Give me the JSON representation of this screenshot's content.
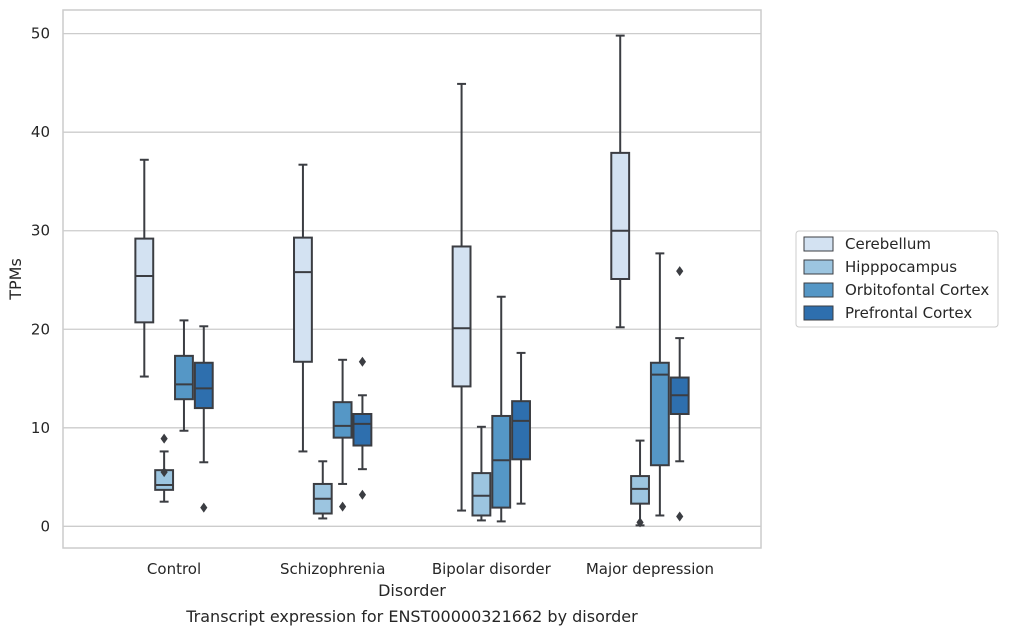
{
  "chart_data": {
    "type": "box",
    "xlabel": "Disorder",
    "ylabel": "TPMs",
    "caption": "Transcript expression for ENST00000321662 by disorder",
    "ylim": [
      -2.2,
      52.4
    ],
    "yticks": [
      0,
      10,
      20,
      30,
      40,
      50
    ],
    "grid": "horizontal",
    "legend_position": "right",
    "categories": [
      "Control",
      "Schizophrenia",
      "Bipolar disorder",
      "Major depression"
    ],
    "series": [
      {
        "name": "Cerebellum",
        "color": "#d3e2f2",
        "boxes": [
          {
            "whisker_low": 15.2,
            "q1": 20.7,
            "median": 25.4,
            "q3": 29.2,
            "whisker_high": 37.2,
            "outliers": []
          },
          {
            "whisker_low": 7.6,
            "q1": 16.7,
            "median": 25.8,
            "q3": 29.3,
            "whisker_high": 36.7,
            "outliers": []
          },
          {
            "whisker_low": 1.6,
            "q1": 14.2,
            "median": 20.1,
            "q3": 28.4,
            "whisker_high": 44.9,
            "outliers": []
          },
          {
            "whisker_low": 20.2,
            "q1": 25.1,
            "median": 30.0,
            "q3": 37.9,
            "whisker_high": 49.8,
            "outliers": []
          }
        ]
      },
      {
        "name": "Hipppocampus",
        "color": "#9cc5e0",
        "boxes": [
          {
            "whisker_low": 2.5,
            "q1": 3.7,
            "median": 4.2,
            "q3": 5.7,
            "whisker_high": 7.6,
            "outliers": [
              8.9,
              5.5
            ]
          },
          {
            "whisker_low": 0.8,
            "q1": 1.3,
            "median": 2.8,
            "q3": 4.3,
            "whisker_high": 6.6,
            "outliers": []
          },
          {
            "whisker_low": 0.6,
            "q1": 1.1,
            "median": 3.1,
            "q3": 5.4,
            "whisker_high": 10.1,
            "outliers": []
          },
          {
            "whisker_low": 0.1,
            "q1": 2.3,
            "median": 3.8,
            "q3": 5.1,
            "whisker_high": 8.7,
            "outliers": [
              0.4
            ]
          }
        ]
      },
      {
        "name": "Orbitofontal Cortex",
        "color": "#5597c6",
        "boxes": [
          {
            "whisker_low": 9.7,
            "q1": 12.9,
            "median": 14.4,
            "q3": 17.3,
            "whisker_high": 20.9,
            "outliers": []
          },
          {
            "whisker_low": 4.3,
            "q1": 9.0,
            "median": 10.2,
            "q3": 12.6,
            "whisker_high": 16.9,
            "outliers": [
              2.0
            ]
          },
          {
            "whisker_low": 0.5,
            "q1": 1.9,
            "median": 6.7,
            "q3": 11.2,
            "whisker_high": 23.3,
            "outliers": []
          },
          {
            "whisker_low": 1.1,
            "q1": 6.2,
            "median": 15.4,
            "q3": 16.6,
            "whisker_high": 27.7,
            "outliers": []
          }
        ]
      },
      {
        "name": "Prefrontal Cortex",
        "color": "#2e6fae",
        "boxes": [
          {
            "whisker_low": 6.5,
            "q1": 12.0,
            "median": 14.0,
            "q3": 16.6,
            "whisker_high": 20.3,
            "outliers": [
              1.9
            ]
          },
          {
            "whisker_low": 5.8,
            "q1": 8.2,
            "median": 10.4,
            "q3": 11.4,
            "whisker_high": 13.3,
            "outliers": [
              16.7,
              3.2
            ]
          },
          {
            "whisker_low": 2.3,
            "q1": 6.8,
            "median": 10.7,
            "q3": 12.7,
            "whisker_high": 17.6,
            "outliers": []
          },
          {
            "whisker_low": 6.6,
            "q1": 11.4,
            "median": 13.3,
            "q3": 15.1,
            "whisker_high": 19.1,
            "outliers": [
              25.9,
              1.0
            ]
          }
        ]
      }
    ]
  }
}
